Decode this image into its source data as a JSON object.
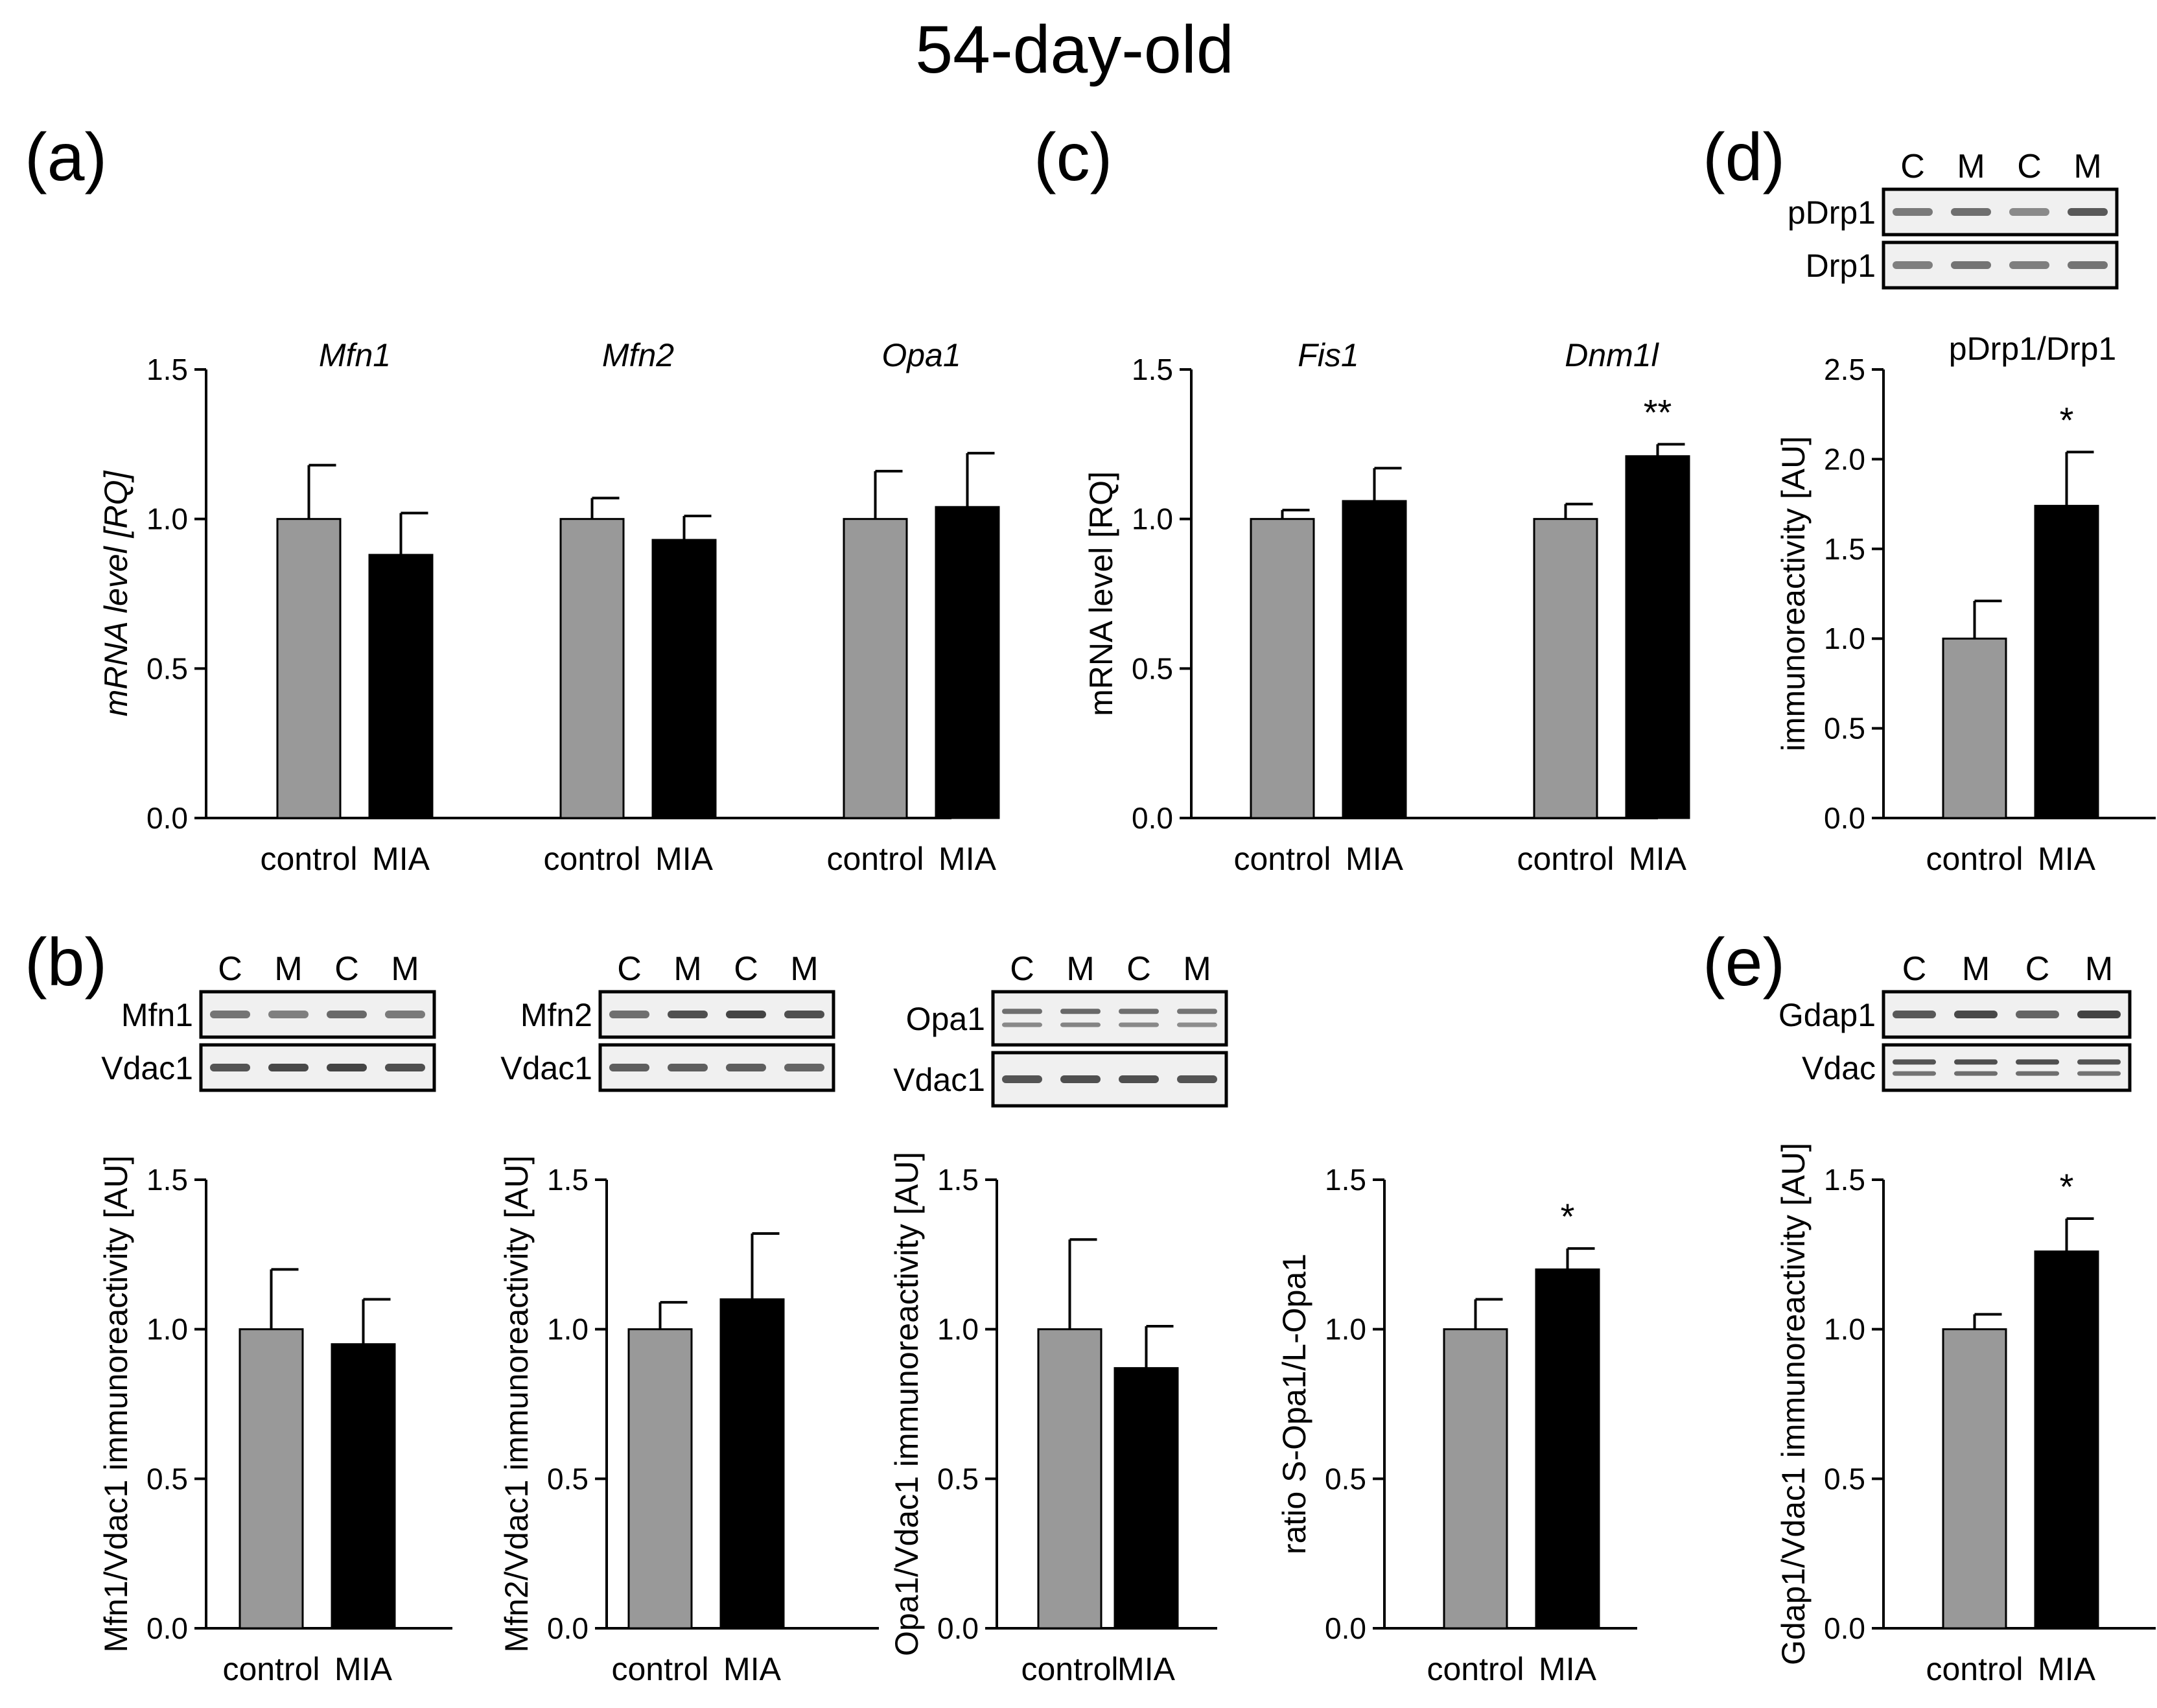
{
  "figure_title": "54-day-old",
  "colors": {
    "control": "#999999",
    "mia": "#000000",
    "blot_bg": "#f0f0f0",
    "band": "#3a3a3a"
  },
  "panel_labels": {
    "a": "(a)",
    "b": "(b)",
    "c": "(c)",
    "d": "(d)",
    "e": "(e)"
  },
  "blots": {
    "b1": {
      "lanes": [
        "C",
        "M",
        "C",
        "M"
      ],
      "top": "Mfn1",
      "bottom": "Vdac1"
    },
    "b2": {
      "lanes": [
        "C",
        "M",
        "C",
        "M"
      ],
      "top": "Mfn2",
      "bottom": "Vdac1"
    },
    "b3": {
      "lanes": [
        "C",
        "M",
        "C",
        "M"
      ],
      "top": "Opa1",
      "bottom": "Vdac1"
    },
    "d": {
      "lanes": [
        "C",
        "M",
        "C",
        "M"
      ],
      "top": "pDrp1",
      "bottom": "Drp1"
    },
    "e": {
      "lanes": [
        "C",
        "M",
        "C",
        "M"
      ],
      "top": "Gdap1",
      "bottom": "Vdac"
    }
  },
  "chart_data": [
    {
      "id": "a",
      "type": "bar",
      "ylabel": "mRNA level [RQ]",
      "ylim": [
        0,
        1.5
      ],
      "yticks": [
        "0.0",
        "0.5",
        "1.0",
        "1.5"
      ],
      "groups": [
        {
          "title": "Mfn1",
          "categories": [
            "control",
            "MIA"
          ],
          "values": [
            1.0,
            0.88
          ],
          "errors": [
            0.18,
            0.14
          ],
          "sig": ""
        },
        {
          "title": "Mfn2",
          "categories": [
            "control",
            "MIA"
          ],
          "values": [
            1.0,
            0.93
          ],
          "errors": [
            0.07,
            0.08
          ],
          "sig": ""
        },
        {
          "title": "Opa1",
          "categories": [
            "control",
            "MIA"
          ],
          "values": [
            1.0,
            1.04
          ],
          "errors": [
            0.16,
            0.18
          ],
          "sig": ""
        }
      ]
    },
    {
      "id": "c",
      "type": "bar",
      "ylabel": "mRNA level [RQ]",
      "ylim": [
        0,
        1.5
      ],
      "yticks": [
        "0.0",
        "0.5",
        "1.0",
        "1.5"
      ],
      "groups": [
        {
          "title": "Fis1",
          "categories": [
            "control",
            "MIA"
          ],
          "values": [
            1.0,
            1.06
          ],
          "errors": [
            0.03,
            0.11
          ],
          "sig": ""
        },
        {
          "title": "Dnm1l",
          "categories": [
            "control",
            "MIA"
          ],
          "values": [
            1.0,
            1.21
          ],
          "errors": [
            0.05,
            0.04
          ],
          "sig": "**"
        }
      ]
    },
    {
      "id": "d",
      "type": "bar",
      "title": "pDrp1/Drp1",
      "ylabel": "immunoreactivity [AU]",
      "ylim": [
        0,
        2.5
      ],
      "yticks": [
        "0.0",
        "0.5",
        "1.0",
        "1.5",
        "2.0",
        "2.5"
      ],
      "groups": [
        {
          "title": "",
          "categories": [
            "control",
            "MIA"
          ],
          "values": [
            1.0,
            1.74
          ],
          "errors": [
            0.21,
            0.3
          ],
          "sig": "*"
        }
      ]
    },
    {
      "id": "b1",
      "type": "bar",
      "ylabel": "Mfn1/Vdac1 immunoreactivity [AU]",
      "ylim": [
        0,
        1.5
      ],
      "yticks": [
        "0.0",
        "0.5",
        "1.0",
        "1.5"
      ],
      "groups": [
        {
          "title": "",
          "categories": [
            "control",
            "MIA"
          ],
          "values": [
            1.0,
            0.95
          ],
          "errors": [
            0.2,
            0.15
          ],
          "sig": ""
        }
      ]
    },
    {
      "id": "b2",
      "type": "bar",
      "ylabel": "Mfn2/Vdac1 immunoreactivity [AU]",
      "ylim": [
        0,
        1.5
      ],
      "yticks": [
        "0.0",
        "0.5",
        "1.0",
        "1.5"
      ],
      "groups": [
        {
          "title": "",
          "categories": [
            "control",
            "MIA"
          ],
          "values": [
            1.0,
            1.1
          ],
          "errors": [
            0.09,
            0.22
          ],
          "sig": ""
        }
      ]
    },
    {
      "id": "b3",
      "type": "bar",
      "ylabel": "Opa1/Vdac1 immunoreactivity [AU]",
      "ylim": [
        0,
        1.5
      ],
      "yticks": [
        "0.0",
        "0.5",
        "1.0",
        "1.5"
      ],
      "groups": [
        {
          "title": "",
          "categories": [
            "control",
            "MIA"
          ],
          "values": [
            1.0,
            0.87
          ],
          "errors": [
            0.3,
            0.14
          ],
          "sig": ""
        }
      ]
    },
    {
      "id": "b4",
      "type": "bar",
      "ylabel": "ratio S-Opa1/L-Opa1",
      "ylim": [
        0,
        1.5
      ],
      "yticks": [
        "0.0",
        "0.5",
        "1.0",
        "1.5"
      ],
      "groups": [
        {
          "title": "",
          "categories": [
            "control",
            "MIA"
          ],
          "values": [
            1.0,
            1.2
          ],
          "errors": [
            0.1,
            0.07
          ],
          "sig": "*"
        }
      ]
    },
    {
      "id": "e",
      "type": "bar",
      "ylabel": "Gdap1/Vdac1 immunoreactivity [AU]",
      "ylim": [
        0,
        1.5
      ],
      "yticks": [
        "0.0",
        "0.5",
        "1.0",
        "1.5"
      ],
      "groups": [
        {
          "title": "",
          "categories": [
            "control",
            "MIA"
          ],
          "values": [
            1.0,
            1.26
          ],
          "errors": [
            0.05,
            0.11
          ],
          "sig": "*"
        }
      ]
    }
  ]
}
